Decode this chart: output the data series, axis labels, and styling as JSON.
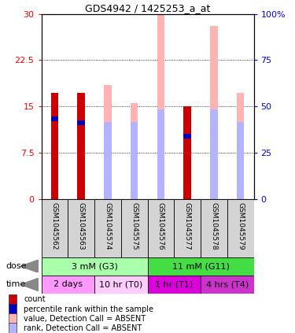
{
  "title": "GDS4942 / 1425253_a_at",
  "samples": [
    "GSM1045562",
    "GSM1045563",
    "GSM1045574",
    "GSM1045575",
    "GSM1045576",
    "GSM1045577",
    "GSM1045578",
    "GSM1045579"
  ],
  "count_values": [
    17.2,
    17.2,
    0,
    0,
    0,
    15.0,
    0,
    0
  ],
  "percentile_values": [
    13.0,
    12.3,
    0,
    0,
    0,
    10.2,
    0,
    0
  ],
  "absent_value_heights": [
    0,
    0,
    18.5,
    15.5,
    30.0,
    0,
    28.0,
    17.2
  ],
  "absent_rank_heights": [
    0,
    0,
    12.5,
    12.5,
    14.5,
    0,
    14.5,
    12.5
  ],
  "count_color": "#cc0000",
  "percentile_color": "#0000bb",
  "absent_value_color": "#ffb3b3",
  "absent_rank_color": "#b3b3ff",
  "ylim_left": [
    0,
    30
  ],
  "ylim_right": [
    0,
    100
  ],
  "yticks_left": [
    0,
    7.5,
    15,
    22.5,
    30
  ],
  "yticks_right": [
    0,
    25,
    50,
    75,
    100
  ],
  "ytick_labels_right": [
    "0",
    "25",
    "50",
    "75",
    "100%"
  ],
  "dose_groups": [
    {
      "label": "3 mM (G3)",
      "start": 0,
      "end": 4,
      "color": "#aaffaa"
    },
    {
      "label": "11 mM (G11)",
      "start": 4,
      "end": 8,
      "color": "#44dd44"
    }
  ],
  "time_groups": [
    {
      "label": "2 days",
      "start": 0,
      "end": 2,
      "color": "#ff99ff"
    },
    {
      "label": "10 hr (T0)",
      "start": 2,
      "end": 4,
      "color": "#ffccff"
    },
    {
      "label": "1 hr (T1)",
      "start": 4,
      "end": 6,
      "color": "#dd00dd"
    },
    {
      "label": "4 hrs (T4)",
      "start": 6,
      "end": 8,
      "color": "#cc33cc"
    }
  ],
  "legend_items": [
    {
      "label": "count",
      "color": "#cc0000"
    },
    {
      "label": "percentile rank within the sample",
      "color": "#0000bb"
    },
    {
      "label": "value, Detection Call = ABSENT",
      "color": "#ffb3b3"
    },
    {
      "label": "rank, Detection Call = ABSENT",
      "color": "#b3b3ff"
    }
  ],
  "bar_width": 0.28
}
